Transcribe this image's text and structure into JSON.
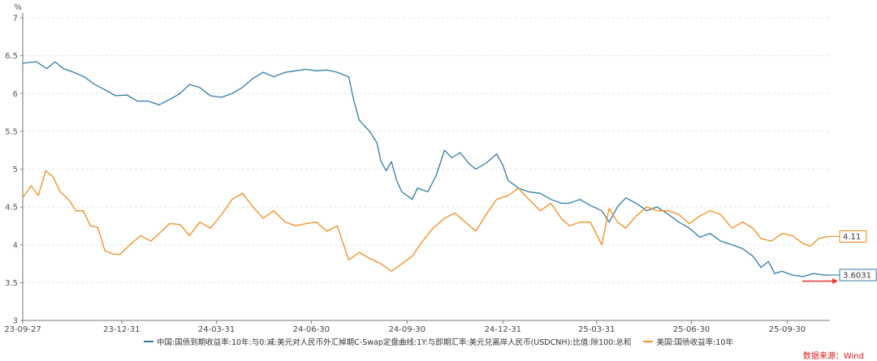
{
  "chart_data": {
    "type": "line",
    "unit": "%",
    "ylim": [
      3,
      7
    ],
    "yticks": [
      "3",
      "3.5",
      "4",
      "4.5",
      "5",
      "5.5",
      "6",
      "6.5",
      "7"
    ],
    "xlim": [
      "2023-09-27",
      "2025-11-10"
    ],
    "xticks": [
      {
        "date": "2023-09-27",
        "label": "23-09-27"
      },
      {
        "date": "2023-12-31",
        "label": "23-12-31"
      },
      {
        "date": "2024-03-31",
        "label": "24-03-31"
      },
      {
        "date": "2024-06-30",
        "label": "24-06-30"
      },
      {
        "date": "2024-09-30",
        "label": "24-09-30"
      },
      {
        "date": "2024-12-31",
        "label": "24-12-31"
      },
      {
        "date": "2025-03-31",
        "label": "25-03-31"
      },
      {
        "date": "2025-06-30",
        "label": "25-06-30"
      },
      {
        "date": "2025-09-30",
        "label": "25-09-30"
      }
    ],
    "grid": "horizontal-dashed",
    "legend_position": "bottom",
    "series": [
      {
        "name": "中国:国债到期收益率:10年:与0:减:美元对人民币外汇掉期C-Swap定盘曲线:1Y:与即期汇率:美元兑离岸人民币(USDCNH):比值:除100:总和",
        "color": "#2e7ca4",
        "end_label": "3.6031",
        "points": [
          [
            "2023-09-27",
            6.4
          ],
          [
            "2023-10-10",
            6.42
          ],
          [
            "2023-10-20",
            6.33
          ],
          [
            "2023-10-28",
            6.42
          ],
          [
            "2023-11-05",
            6.33
          ],
          [
            "2023-11-15",
            6.28
          ],
          [
            "2023-11-25",
            6.22
          ],
          [
            "2023-12-05",
            6.12
          ],
          [
            "2023-12-15",
            6.05
          ],
          [
            "2023-12-25",
            5.97
          ],
          [
            "2024-01-05",
            5.98
          ],
          [
            "2024-01-15",
            5.9
          ],
          [
            "2024-01-25",
            5.9
          ],
          [
            "2024-02-05",
            5.85
          ],
          [
            "2024-02-15",
            5.92
          ],
          [
            "2024-02-25",
            6.0
          ],
          [
            "2024-03-05",
            6.12
          ],
          [
            "2024-03-15",
            6.08
          ],
          [
            "2024-03-25",
            5.97
          ],
          [
            "2024-04-05",
            5.95
          ],
          [
            "2024-04-15",
            6.0
          ],
          [
            "2024-04-25",
            6.08
          ],
          [
            "2024-05-05",
            6.2
          ],
          [
            "2024-05-15",
            6.28
          ],
          [
            "2024-05-25",
            6.22
          ],
          [
            "2024-06-05",
            6.28
          ],
          [
            "2024-06-15",
            6.3
          ],
          [
            "2024-06-25",
            6.32
          ],
          [
            "2024-07-05",
            6.3
          ],
          [
            "2024-07-15",
            6.31
          ],
          [
            "2024-07-25",
            6.28
          ],
          [
            "2024-08-05",
            6.22
          ],
          [
            "2024-08-10",
            5.9
          ],
          [
            "2024-08-15",
            5.65
          ],
          [
            "2024-08-25",
            5.5
          ],
          [
            "2024-09-01",
            5.35
          ],
          [
            "2024-09-05",
            5.1
          ],
          [
            "2024-09-10",
            4.98
          ],
          [
            "2024-09-15",
            5.1
          ],
          [
            "2024-09-20",
            4.85
          ],
          [
            "2024-09-25",
            4.7
          ],
          [
            "2024-09-30",
            4.65
          ],
          [
            "2024-10-05",
            4.6
          ],
          [
            "2024-10-10",
            4.75
          ],
          [
            "2024-10-20",
            4.7
          ],
          [
            "2024-10-28",
            4.92
          ],
          [
            "2024-11-05",
            5.25
          ],
          [
            "2024-11-12",
            5.15
          ],
          [
            "2024-11-20",
            5.22
          ],
          [
            "2024-11-28",
            5.08
          ],
          [
            "2024-12-05",
            5.0
          ],
          [
            "2024-12-15",
            5.08
          ],
          [
            "2024-12-25",
            5.2
          ],
          [
            "2024-12-31",
            5.05
          ],
          [
            "2025-01-05",
            4.85
          ],
          [
            "2025-01-15",
            4.75
          ],
          [
            "2025-01-25",
            4.7
          ],
          [
            "2025-02-05",
            4.68
          ],
          [
            "2025-02-15",
            4.6
          ],
          [
            "2025-02-25",
            4.55
          ],
          [
            "2025-03-05",
            4.55
          ],
          [
            "2025-03-15",
            4.6
          ],
          [
            "2025-03-25",
            4.52
          ],
          [
            "2025-04-05",
            4.45
          ],
          [
            "2025-04-12",
            4.3
          ],
          [
            "2025-04-20",
            4.5
          ],
          [
            "2025-04-28",
            4.62
          ],
          [
            "2025-05-08",
            4.55
          ],
          [
            "2025-05-18",
            4.45
          ],
          [
            "2025-05-28",
            4.5
          ],
          [
            "2025-06-08",
            4.4
          ],
          [
            "2025-06-18",
            4.3
          ],
          [
            "2025-06-28",
            4.22
          ],
          [
            "2025-07-08",
            4.1
          ],
          [
            "2025-07-18",
            4.15
          ],
          [
            "2025-07-28",
            4.05
          ],
          [
            "2025-08-08",
            4.0
          ],
          [
            "2025-08-18",
            3.95
          ],
          [
            "2025-08-28",
            3.85
          ],
          [
            "2025-09-05",
            3.7
          ],
          [
            "2025-09-12",
            3.78
          ],
          [
            "2025-09-18",
            3.62
          ],
          [
            "2025-09-25",
            3.65
          ],
          [
            "2025-10-05",
            3.6
          ],
          [
            "2025-10-15",
            3.58
          ],
          [
            "2025-10-25",
            3.62
          ],
          [
            "2025-11-05",
            3.6
          ],
          [
            "2025-11-10",
            3.6
          ]
        ]
      },
      {
        "name": "美国:国债收益率:10年",
        "color": "#f08c1a",
        "end_label": "4.11",
        "points": [
          [
            "2023-09-27",
            4.62
          ],
          [
            "2023-10-05",
            4.78
          ],
          [
            "2023-10-12",
            4.65
          ],
          [
            "2023-10-19",
            4.98
          ],
          [
            "2023-10-26",
            4.9
          ],
          [
            "2023-11-02",
            4.7
          ],
          [
            "2023-11-10",
            4.6
          ],
          [
            "2023-11-17",
            4.45
          ],
          [
            "2023-11-24",
            4.45
          ],
          [
            "2023-12-01",
            4.25
          ],
          [
            "2023-12-08",
            4.23
          ],
          [
            "2023-12-15",
            3.92
          ],
          [
            "2023-12-22",
            3.88
          ],
          [
            "2023-12-29",
            3.87
          ],
          [
            "2024-01-08",
            4.0
          ],
          [
            "2024-01-18",
            4.12
          ],
          [
            "2024-01-28",
            4.05
          ],
          [
            "2024-02-05",
            4.15
          ],
          [
            "2024-02-15",
            4.28
          ],
          [
            "2024-02-25",
            4.27
          ],
          [
            "2024-03-05",
            4.12
          ],
          [
            "2024-03-15",
            4.3
          ],
          [
            "2024-03-25",
            4.22
          ],
          [
            "2024-04-05",
            4.4
          ],
          [
            "2024-04-15",
            4.6
          ],
          [
            "2024-04-25",
            4.68
          ],
          [
            "2024-05-05",
            4.5
          ],
          [
            "2024-05-15",
            4.35
          ],
          [
            "2024-05-25",
            4.45
          ],
          [
            "2024-06-05",
            4.3
          ],
          [
            "2024-06-15",
            4.25
          ],
          [
            "2024-06-25",
            4.28
          ],
          [
            "2024-07-05",
            4.3
          ],
          [
            "2024-07-15",
            4.18
          ],
          [
            "2024-07-25",
            4.25
          ],
          [
            "2024-08-05",
            3.8
          ],
          [
            "2024-08-15",
            3.9
          ],
          [
            "2024-08-25",
            3.82
          ],
          [
            "2024-09-05",
            3.75
          ],
          [
            "2024-09-15",
            3.65
          ],
          [
            "2024-09-25",
            3.75
          ],
          [
            "2024-10-05",
            3.85
          ],
          [
            "2024-10-15",
            4.05
          ],
          [
            "2024-10-25",
            4.22
          ],
          [
            "2024-11-05",
            4.35
          ],
          [
            "2024-11-15",
            4.42
          ],
          [
            "2024-11-25",
            4.3
          ],
          [
            "2024-12-05",
            4.18
          ],
          [
            "2024-12-15",
            4.4
          ],
          [
            "2024-12-25",
            4.6
          ],
          [
            "2025-01-05",
            4.65
          ],
          [
            "2025-01-15",
            4.75
          ],
          [
            "2025-01-25",
            4.6
          ],
          [
            "2025-02-05",
            4.45
          ],
          [
            "2025-02-15",
            4.55
          ],
          [
            "2025-02-25",
            4.35
          ],
          [
            "2025-03-05",
            4.25
          ],
          [
            "2025-03-15",
            4.3
          ],
          [
            "2025-03-25",
            4.3
          ],
          [
            "2025-04-05",
            4.0
          ],
          [
            "2025-04-12",
            4.48
          ],
          [
            "2025-04-20",
            4.3
          ],
          [
            "2025-04-28",
            4.22
          ],
          [
            "2025-05-08",
            4.38
          ],
          [
            "2025-05-18",
            4.5
          ],
          [
            "2025-05-28",
            4.45
          ],
          [
            "2025-06-08",
            4.45
          ],
          [
            "2025-06-18",
            4.4
          ],
          [
            "2025-06-28",
            4.28
          ],
          [
            "2025-07-08",
            4.38
          ],
          [
            "2025-07-18",
            4.45
          ],
          [
            "2025-07-28",
            4.4
          ],
          [
            "2025-08-08",
            4.22
          ],
          [
            "2025-08-18",
            4.3
          ],
          [
            "2025-08-28",
            4.22
          ],
          [
            "2025-09-05",
            4.08
          ],
          [
            "2025-09-15",
            4.05
          ],
          [
            "2025-09-25",
            4.15
          ],
          [
            "2025-10-05",
            4.12
          ],
          [
            "2025-10-15",
            4.02
          ],
          [
            "2025-10-22",
            3.98
          ],
          [
            "2025-10-30",
            4.08
          ],
          [
            "2025-11-05",
            4.1
          ],
          [
            "2025-11-10",
            4.11
          ]
        ]
      }
    ]
  },
  "source": {
    "text": "数据来源：Wind",
    "color": "#d6221e"
  },
  "marker_arrow_color": "#e53935"
}
